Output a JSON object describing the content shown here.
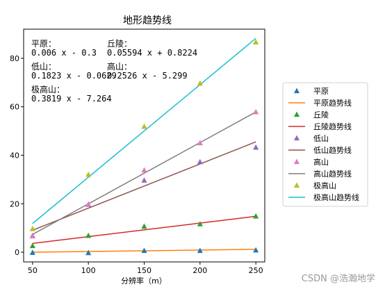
{
  "chart_data": {
    "type": "scatter",
    "title": "地形趋势线",
    "xlabel": "分辨率（m）",
    "ylabel": "",
    "x": [
      50,
      100,
      150,
      200,
      250
    ],
    "xticks": [
      50,
      100,
      150,
      200,
      250
    ],
    "yticks": [
      0,
      20,
      40,
      60,
      80
    ],
    "xlim": [
      42,
      258
    ],
    "ylim": [
      -4,
      92
    ],
    "grid": false,
    "legend_position": "right-outside",
    "series": [
      {
        "name": "平原",
        "trend_name": "平原趋势线",
        "marker_color": "#1f77b4",
        "line_color": "#ff7f0e",
        "values": [
          -0.2,
          -0.3,
          0.6,
          0.6,
          0.8
        ],
        "slope": 0.006,
        "intercept": -0.3
      },
      {
        "name": "丘陵",
        "trend_name": "丘陵趋势线",
        "marker_color": "#2ca02c",
        "line_color": "#d62728",
        "values": [
          2.6,
          6.8,
          10.6,
          11.6,
          14.8
        ],
        "slope": 0.05594,
        "intercept": 0.8224
      },
      {
        "name": "低山",
        "trend_name": "低山趋势线",
        "marker_color": "#9467bd",
        "line_color": "#8c564b",
        "values": [
          6.8,
          19.6,
          29.6,
          37.2,
          43.2
        ],
        "slope": 0.1823,
        "intercept": -0.0629
      },
      {
        "name": "高山",
        "trend_name": "高山趋势线",
        "marker_color": "#e377c2",
        "line_color": "#7f7f7f",
        "values": [
          6.6,
          19.8,
          33.8,
          45.0,
          57.8
        ],
        "slope": 0.2526,
        "intercept": -5.299
      },
      {
        "name": "极高山",
        "trend_name": "极高山趋势线",
        "marker_color": "#bcbd22",
        "line_color": "#17becf",
        "values": [
          9.6,
          32.0,
          51.8,
          69.6,
          86.6
        ],
        "slope": 0.3819,
        "intercept": -7.264
      }
    ],
    "annotations": [
      {
        "label": "平原：",
        "equation": "0.006 x - 0.3"
      },
      {
        "label": "丘陵：",
        "equation": "0.05594 x + 0.8224"
      },
      {
        "label": "低山：",
        "equation": "0.1823 x - 0.0629"
      },
      {
        "label": "高山：",
        "equation": "0.2526 x - 5.299"
      },
      {
        "label": "极高山：",
        "equation": "0.3819 x - 7.264"
      }
    ]
  },
  "watermark": "CSDN @浩瀚地学"
}
